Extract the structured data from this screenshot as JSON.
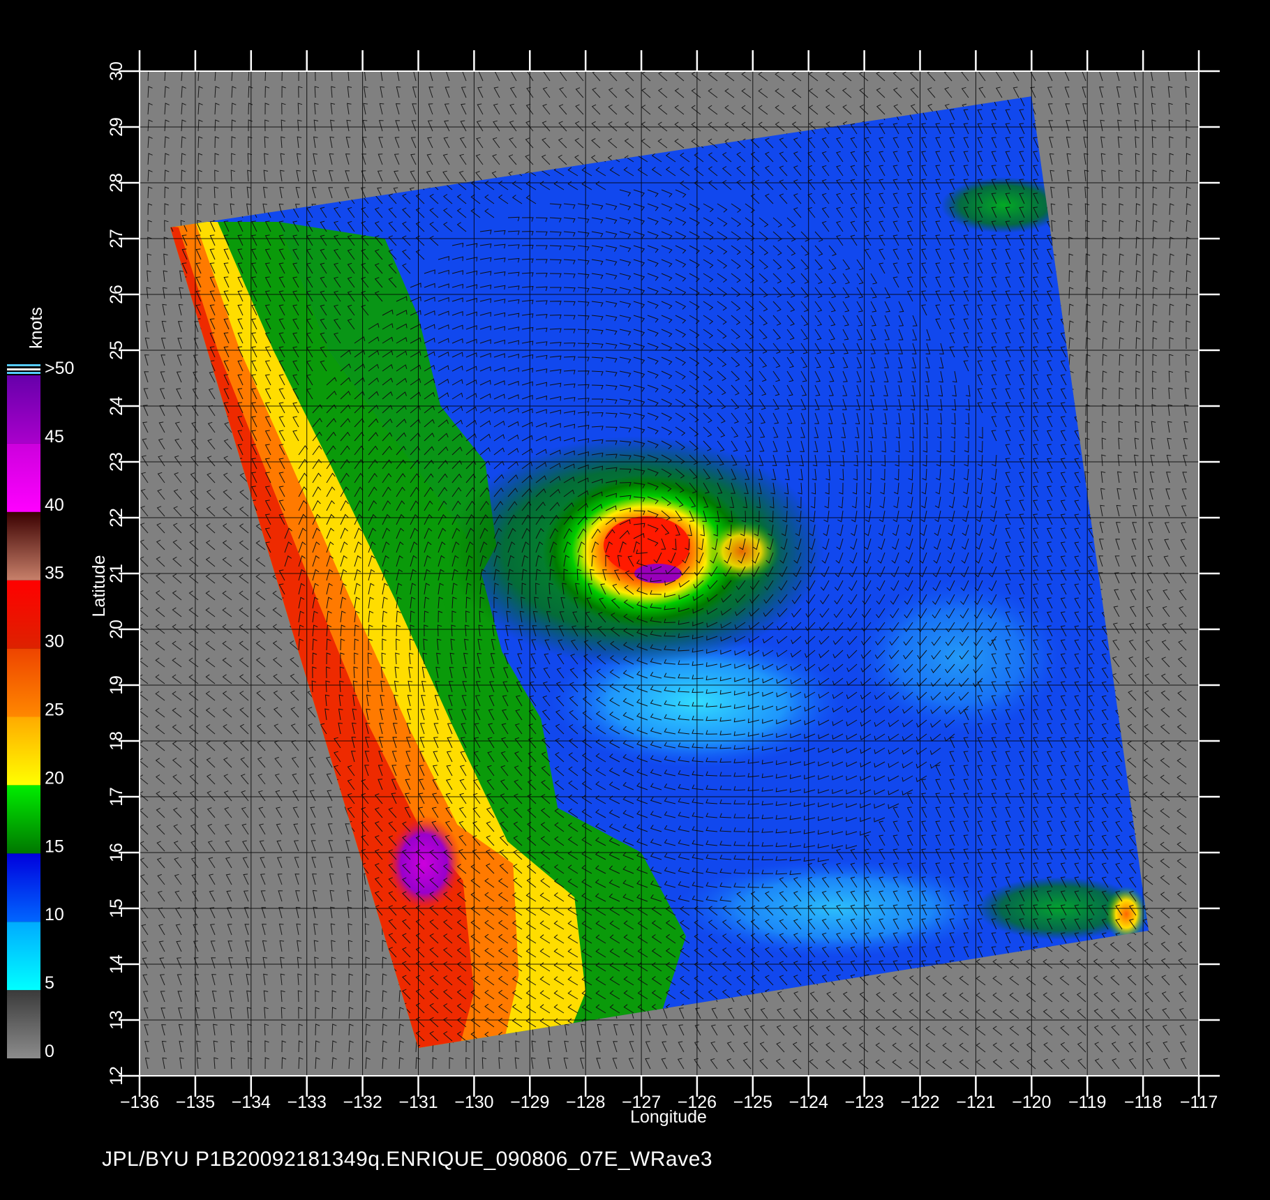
{
  "figure": {
    "footer": "JPL/BYU  P1B20092181349q.ENRIQUE_090806_07E_WRave3"
  },
  "map": {
    "x_axis": {
      "label": "Longitude",
      "min": -136,
      "max": -117,
      "ticks": [
        -136,
        -135,
        -134,
        -133,
        -132,
        -131,
        -130,
        -129,
        -128,
        -127,
        -126,
        -125,
        -124,
        -123,
        -122,
        -121,
        -120,
        -119,
        -118,
        -117
      ],
      "tick_labels": [
        "−136",
        "−135",
        "−134",
        "−133",
        "−132",
        "−131",
        "−130",
        "−129",
        "−128",
        "−127",
        "−126",
        "−125",
        "−124",
        "−123",
        "−122",
        "−121",
        "−120",
        "−119",
        "−118",
        "−117"
      ]
    },
    "y_axis": {
      "label": "Latitude",
      "min": 12,
      "max": 30,
      "ticks": [
        12,
        13,
        14,
        15,
        16,
        17,
        18,
        19,
        20,
        21,
        22,
        23,
        24,
        25,
        26,
        27,
        28,
        29,
        30
      ],
      "tick_labels": [
        "12",
        "13",
        "14",
        "15",
        "16",
        "17",
        "18",
        "19",
        "20",
        "21",
        "22",
        "23",
        "24",
        "25",
        "26",
        "27",
        "28",
        "29",
        "30"
      ]
    },
    "grid": true,
    "background_color": "#808080",
    "swath_corners_lonlat": [
      [
        -135.45,
        27.2
      ],
      [
        -120.0,
        29.55
      ],
      [
        -117.9,
        14.6
      ],
      [
        -131.0,
        12.5
      ]
    ],
    "storm_center_lonlat": [
      -126.9,
      21.4
    ],
    "storm_name": "ENRIQUE"
  },
  "colorbar": {
    "title": "knots",
    "segments": [
      {
        "min": 0,
        "max": 5,
        "from": "#8c8c8c",
        "to": "#3a3a3a"
      },
      {
        "min": 5,
        "max": 10,
        "from": "#00ffff",
        "to": "#00aaff"
      },
      {
        "min": 10,
        "max": 15,
        "from": "#0066ff",
        "to": "#0000dd"
      },
      {
        "min": 15,
        "max": 20,
        "from": "#007700",
        "to": "#00ee00"
      },
      {
        "min": 20,
        "max": 25,
        "from": "#ffff00",
        "to": "#ffaa00"
      },
      {
        "min": 25,
        "max": 30,
        "from": "#ff8800",
        "to": "#ee4400"
      },
      {
        "min": 30,
        "max": 35,
        "from": "#dd2200",
        "to": "#ff0000"
      },
      {
        "min": 35,
        "max": 40,
        "from": "#c8806a",
        "to": "#3a0000"
      },
      {
        "min": 40,
        "max": 45,
        "from": "#ff00ff",
        "to": "#cc00dd"
      },
      {
        "min": 45,
        "max": 50,
        "from": "#aa00cc",
        "to": "#6600aa"
      }
    ],
    "labels": [
      {
        "value": 0,
        "text": "0"
      },
      {
        "value": 5,
        "text": "5"
      },
      {
        "value": 10,
        "text": "10"
      },
      {
        "value": 15,
        "text": "15"
      },
      {
        "value": 20,
        "text": "20"
      },
      {
        "value": 25,
        "text": "25"
      },
      {
        "value": 30,
        "text": "30"
      },
      {
        "value": 35,
        "text": "35"
      },
      {
        "value": 40,
        "text": "40"
      },
      {
        "value": 45,
        "text": "45"
      },
      {
        "value": 50,
        "text": ">50"
      }
    ],
    "min": 0,
    "max": 50
  }
}
